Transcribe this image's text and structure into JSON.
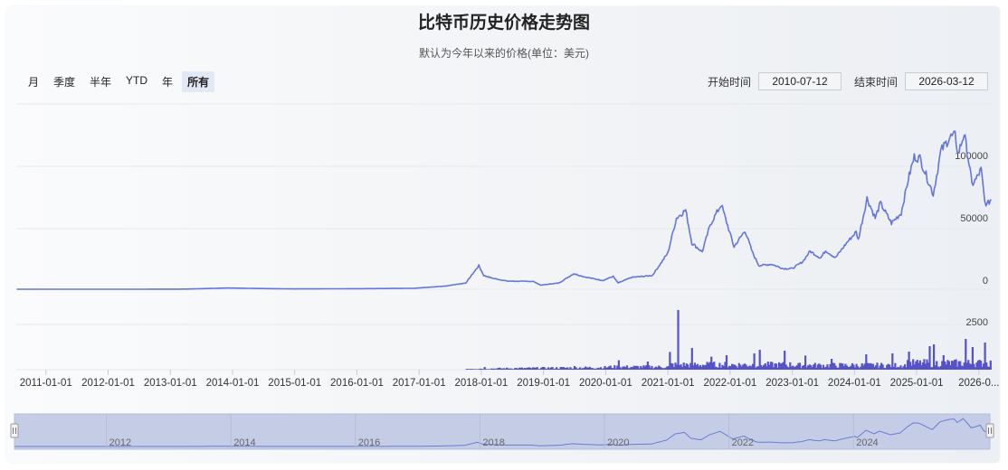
{
  "title": "比特币历史价格走势图",
  "subtitle": "默认为今年以来的价格(单位：美元)",
  "range_tabs": [
    {
      "label": "月",
      "active": false
    },
    {
      "label": "季度",
      "active": false
    },
    {
      "label": "半年",
      "active": false
    },
    {
      "label": "YTD",
      "active": false
    },
    {
      "label": "年",
      "active": false
    },
    {
      "label": "所有",
      "active": true
    }
  ],
  "date_range": {
    "start_label": "开始时间",
    "start_value": "2010-07-12",
    "end_label": "结束时间",
    "end_value": "2026-03-12"
  },
  "colors": {
    "line": "#6476dc",
    "volume": "#5552c8",
    "navigator_fill": "#c5cde6",
    "grid": "#e6e8ec"
  },
  "chart_data": {
    "type": "line",
    "price_axis": {
      "ticks": [
        0,
        50000,
        100000
      ],
      "range": [
        0,
        130000
      ]
    },
    "volume_axis": {
      "ticks": [
        2500
      ],
      "range": [
        0,
        3600
      ]
    },
    "x_axis_ticks": [
      "2011-01-01",
      "2012-01-01",
      "2013-01-01",
      "2014-01-01",
      "2015-01-01",
      "2016-01-01",
      "2017-01-01",
      "2018-01-01",
      "2019-01-01",
      "2020-01-01",
      "2021-01-01",
      "2022-01-01",
      "2023-01-01",
      "2024-01-01",
      "2025-01-01",
      "2026-0..."
    ],
    "navigator_ticks": [
      "2012",
      "2014",
      "2016",
      "2018",
      "2020",
      "2022",
      "2024"
    ],
    "grid": true,
    "price_series": {
      "name": "",
      "points": [
        [
          "2010-07-12",
          0.1
        ],
        [
          "2011-06-01",
          15
        ],
        [
          "2012-06-01",
          6
        ],
        [
          "2013-04-01",
          120
        ],
        [
          "2013-12-01",
          1000
        ],
        [
          "2014-06-01",
          600
        ],
        [
          "2015-01-01",
          250
        ],
        [
          "2016-01-01",
          430
        ],
        [
          "2016-12-01",
          750
        ],
        [
          "2017-06-01",
          2500
        ],
        [
          "2017-10-01",
          5000
        ],
        [
          "2017-12-17",
          19000
        ],
        [
          "2018-01-15",
          11000
        ],
        [
          "2018-03-01",
          9000
        ],
        [
          "2018-06-01",
          6500
        ],
        [
          "2018-11-01",
          6300
        ],
        [
          "2018-12-15",
          3300
        ],
        [
          "2019-04-01",
          5000
        ],
        [
          "2019-06-26",
          12500
        ],
        [
          "2019-09-01",
          9800
        ],
        [
          "2019-12-15",
          7000
        ],
        [
          "2020-02-14",
          10300
        ],
        [
          "2020-03-13",
          5000
        ],
        [
          "2020-06-01",
          9500
        ],
        [
          "2020-10-01",
          11000
        ],
        [
          "2020-12-31",
          29000
        ],
        [
          "2021-02-21",
          57000
        ],
        [
          "2021-04-14",
          63500
        ],
        [
          "2021-05-20",
          37000
        ],
        [
          "2021-07-20",
          30000
        ],
        [
          "2021-09-07",
          52000
        ],
        [
          "2021-11-10",
          68000
        ],
        [
          "2022-01-24",
          34000
        ],
        [
          "2022-03-28",
          47000
        ],
        [
          "2022-05-12",
          29000
        ],
        [
          "2022-06-18",
          19000
        ],
        [
          "2022-09-01",
          20000
        ],
        [
          "2022-11-10",
          16500
        ],
        [
          "2023-01-01",
          16600
        ],
        [
          "2023-03-01",
          22000
        ],
        [
          "2023-04-14",
          30500
        ],
        [
          "2023-06-15",
          25000
        ],
        [
          "2023-07-14",
          31000
        ],
        [
          "2023-09-11",
          25200
        ],
        [
          "2023-11-15",
          37000
        ],
        [
          "2024-01-11",
          46000
        ],
        [
          "2024-01-23",
          39500
        ],
        [
          "2024-03-14",
          73000
        ],
        [
          "2024-05-01",
          57000
        ],
        [
          "2024-06-01",
          69000
        ],
        [
          "2024-08-05",
          53000
        ],
        [
          "2024-10-01",
          61000
        ],
        [
          "2024-11-12",
          88000
        ],
        [
          "2024-12-17",
          106000
        ],
        [
          "2025-01-20",
          105000
        ],
        [
          "2025-04-07",
          76000
        ],
        [
          "2025-05-22",
          111000
        ],
        [
          "2025-07-14",
          122000
        ],
        [
          "2025-08-14",
          123000
        ],
        [
          "2025-09-01",
          108000
        ],
        [
          "2025-10-06",
          125000
        ],
        [
          "2025-11-04",
          101000
        ],
        [
          "2025-11-21",
          84000
        ],
        [
          "2025-12-15",
          88000
        ],
        [
          "2026-01-14",
          96000
        ],
        [
          "2026-02-05",
          70000
        ],
        [
          "2026-02-20",
          68000
        ],
        [
          "2026-03-12",
          72000
        ]
      ]
    },
    "volume_series": {
      "name": "",
      "start": "2017-10-01",
      "spikes": [
        [
          "2018-01-15",
          150
        ],
        [
          "2019-06-26",
          200
        ],
        [
          "2020-03-13",
          520
        ],
        [
          "2020-09-01",
          450
        ],
        [
          "2021-01-11",
          980
        ],
        [
          "2021-02-24",
          3300
        ],
        [
          "2021-05-19",
          1200
        ],
        [
          "2021-09-07",
          720
        ],
        [
          "2021-12-04",
          800
        ],
        [
          "2022-05-12",
          900
        ],
        [
          "2022-06-18",
          1100
        ],
        [
          "2022-11-09",
          1050
        ],
        [
          "2023-03-10",
          780
        ],
        [
          "2023-08-17",
          600
        ],
        [
          "2024-03-05",
          850
        ],
        [
          "2024-08-05",
          900
        ],
        [
          "2024-11-12",
          1000
        ],
        [
          "2025-03-10",
          1300
        ],
        [
          "2025-04-07",
          1400
        ],
        [
          "2025-06-01",
          800
        ],
        [
          "2025-10-10",
          1700
        ],
        [
          "2025-11-21",
          1250
        ],
        [
          "2026-02-05",
          1500
        ]
      ]
    }
  }
}
